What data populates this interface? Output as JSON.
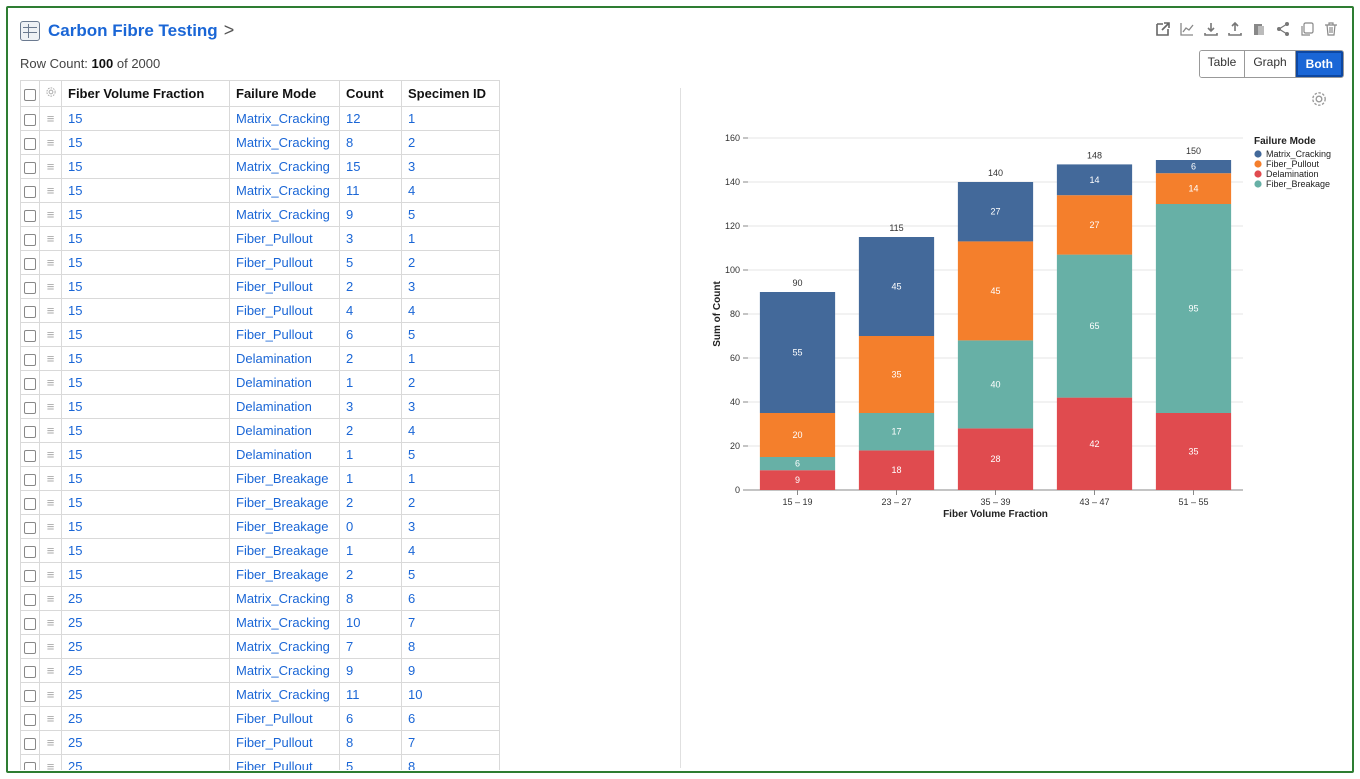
{
  "header": {
    "title": "Carbon Fibre Testing",
    "chevron": ">"
  },
  "row_count": {
    "prefix": "Row Count: ",
    "shown": "100",
    "suffix": " of 2000"
  },
  "toolbar_icons": [
    "external-link-icon",
    "line-chart-icon",
    "download-icon",
    "upload-icon",
    "clipboard-icon",
    "share-icon",
    "copy-icon",
    "trash-icon"
  ],
  "view_toggle": {
    "table": "Table",
    "graph": "Graph",
    "both": "Both",
    "selected": "Both"
  },
  "table": {
    "columns": [
      "Fiber Volume Fraction",
      "Failure Mode",
      "Count",
      "Specimen ID"
    ],
    "rows": [
      [
        "15",
        "Matrix_Cracking",
        "12",
        "1"
      ],
      [
        "15",
        "Matrix_Cracking",
        "8",
        "2"
      ],
      [
        "15",
        "Matrix_Cracking",
        "15",
        "3"
      ],
      [
        "15",
        "Matrix_Cracking",
        "11",
        "4"
      ],
      [
        "15",
        "Matrix_Cracking",
        "9",
        "5"
      ],
      [
        "15",
        "Fiber_Pullout",
        "3",
        "1"
      ],
      [
        "15",
        "Fiber_Pullout",
        "5",
        "2"
      ],
      [
        "15",
        "Fiber_Pullout",
        "2",
        "3"
      ],
      [
        "15",
        "Fiber_Pullout",
        "4",
        "4"
      ],
      [
        "15",
        "Fiber_Pullout",
        "6",
        "5"
      ],
      [
        "15",
        "Delamination",
        "2",
        "1"
      ],
      [
        "15",
        "Delamination",
        "1",
        "2"
      ],
      [
        "15",
        "Delamination",
        "3",
        "3"
      ],
      [
        "15",
        "Delamination",
        "2",
        "4"
      ],
      [
        "15",
        "Delamination",
        "1",
        "5"
      ],
      [
        "15",
        "Fiber_Breakage",
        "1",
        "1"
      ],
      [
        "15",
        "Fiber_Breakage",
        "2",
        "2"
      ],
      [
        "15",
        "Fiber_Breakage",
        "0",
        "3"
      ],
      [
        "15",
        "Fiber_Breakage",
        "1",
        "4"
      ],
      [
        "15",
        "Fiber_Breakage",
        "2",
        "5"
      ],
      [
        "25",
        "Matrix_Cracking",
        "8",
        "6"
      ],
      [
        "25",
        "Matrix_Cracking",
        "10",
        "7"
      ],
      [
        "25",
        "Matrix_Cracking",
        "7",
        "8"
      ],
      [
        "25",
        "Matrix_Cracking",
        "9",
        "9"
      ],
      [
        "25",
        "Matrix_Cracking",
        "11",
        "10"
      ],
      [
        "25",
        "Fiber_Pullout",
        "6",
        "6"
      ],
      [
        "25",
        "Fiber_Pullout",
        "8",
        "7"
      ],
      [
        "25",
        "Fiber_Pullout",
        "5",
        "8"
      ]
    ]
  },
  "colors": {
    "Matrix_Cracking": "#43699a",
    "Fiber_Pullout": "#f47f2c",
    "Delamination": "#e04b4f",
    "Fiber_Breakage": "#67b0a6",
    "link": "#1a66d6"
  },
  "chart_data": {
    "type": "bar",
    "stacked": true,
    "categories": [
      "15 – 19",
      "23 – 27",
      "35 – 39",
      "43 – 47",
      "51 – 55"
    ],
    "series": [
      {
        "name": "Delamination",
        "values": [
          9,
          18,
          28,
          42,
          35
        ]
      },
      {
        "name": "Fiber_Breakage",
        "values": [
          6,
          17,
          40,
          65,
          95
        ]
      },
      {
        "name": "Fiber_Pullout",
        "values": [
          20,
          35,
          45,
          27,
          14
        ]
      },
      {
        "name": "Matrix_Cracking",
        "values": [
          55,
          45,
          27,
          14,
          6
        ]
      }
    ],
    "totals": [
      90,
      115,
      140,
      148,
      150
    ],
    "xlabel": "Fiber Volume Fraction",
    "ylabel": "Sum of Count",
    "ylim": [
      0,
      160
    ],
    "yticks": [
      0,
      20,
      40,
      60,
      80,
      100,
      120,
      140,
      160
    ],
    "legend_title": "Failure Mode",
    "legend_entries": [
      "Matrix_Cracking",
      "Fiber_Pullout",
      "Delamination",
      "Fiber_Breakage"
    ],
    "legend_position": "top-right",
    "grid": true
  }
}
